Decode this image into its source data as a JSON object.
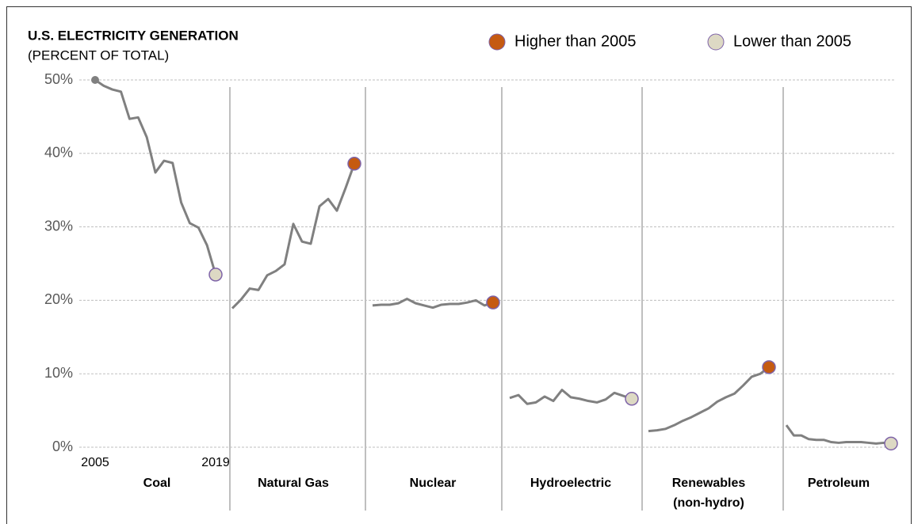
{
  "chart_data": {
    "type": "line",
    "title": "U.S. ELECTRICITY  GENERATION",
    "subtitle": "(PERCENT OF TOTAL)",
    "legend": [
      {
        "label": "Higher than 2005",
        "color": "#c55a11"
      },
      {
        "label": "Lower than 2005",
        "color": "#ddd9c4"
      }
    ],
    "x": [
      2005,
      2006,
      2007,
      2008,
      2009,
      2010,
      2011,
      2012,
      2013,
      2014,
      2015,
      2016,
      2017,
      2018,
      2019
    ],
    "xlim": [
      2005,
      2019
    ],
    "xticks": [
      2005,
      2019
    ],
    "ylim": [
      0,
      50
    ],
    "yticks": [
      {
        "value": 0,
        "label": "0%"
      },
      {
        "value": 10,
        "label": "10%"
      },
      {
        "value": 20,
        "label": "20%"
      },
      {
        "value": 30,
        "label": "30%"
      },
      {
        "value": 40,
        "label": "40%"
      },
      {
        "value": 50,
        "label": "50%"
      }
    ],
    "grid": true,
    "series": [
      {
        "name": "Coal",
        "color": "#808080",
        "marker_color": "#ddd9c4",
        "start_marker": true,
        "values": [
          50.0,
          49.2,
          48.7,
          48.4,
          44.7,
          44.9,
          42.2,
          37.4,
          39.0,
          38.7,
          33.3,
          30.5,
          29.9,
          27.5,
          23.5
        ]
      },
      {
        "name": "Natural Gas",
        "color": "#808080",
        "marker_color": "#c55a11",
        "values": [
          18.9,
          20.1,
          21.6,
          21.4,
          23.4,
          24.0,
          24.9,
          30.4,
          28.0,
          27.7,
          32.8,
          33.8,
          32.2,
          35.3,
          38.6
        ]
      },
      {
        "name": "Nuclear",
        "color": "#808080",
        "marker_color": "#c55a11",
        "values": [
          19.3,
          19.4,
          19.4,
          19.6,
          20.2,
          19.6,
          19.3,
          19.0,
          19.4,
          19.5,
          19.5,
          19.7,
          20.0,
          19.3,
          19.7
        ]
      },
      {
        "name": "Hydroelectric",
        "color": "#808080",
        "marker_color": "#ddd9c4",
        "values": [
          6.7,
          7.1,
          5.9,
          6.1,
          6.9,
          6.3,
          7.8,
          6.8,
          6.6,
          6.3,
          6.1,
          6.5,
          7.4,
          7.0,
          6.6
        ]
      },
      {
        "name": "Renewables (non-hydro)",
        "color": "#808080",
        "marker_color": "#c55a11",
        "values": [
          2.2,
          2.3,
          2.5,
          3.0,
          3.6,
          4.1,
          4.7,
          5.3,
          6.2,
          6.8,
          7.3,
          8.4,
          9.6,
          10.0,
          10.9
        ]
      },
      {
        "name": "Petroleum",
        "color": "#808080",
        "marker_color": "#ddd9c4",
        "values": [
          3.0,
          1.6,
          1.6,
          1.1,
          1.0,
          1.0,
          0.7,
          0.6,
          0.7,
          0.7,
          0.7,
          0.6,
          0.5,
          0.6,
          0.5
        ]
      }
    ]
  }
}
